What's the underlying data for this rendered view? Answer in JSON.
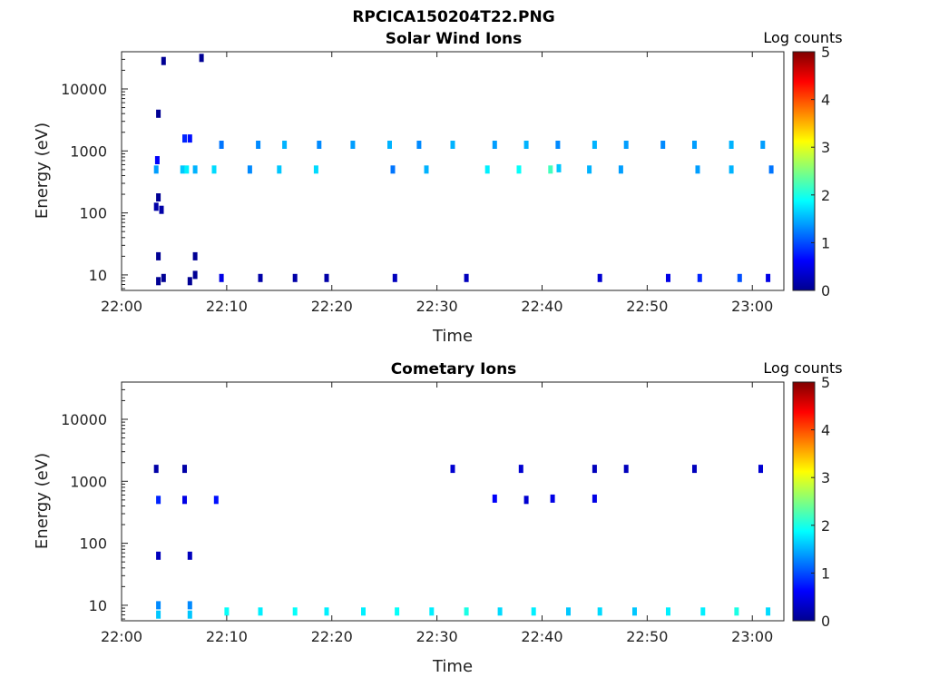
{
  "figure_title": "RPCICA150204T22.PNG",
  "chart_data": [
    {
      "type": "heatmap",
      "title": "Solar Wind Ions",
      "xlabel": "Time",
      "ylabel": "Energy (eV)",
      "xticks": [
        "22:00",
        "22:10",
        "22:20",
        "22:30",
        "22:40",
        "22:50",
        "23:00"
      ],
      "yticks": [
        "10",
        "100",
        "1000",
        "10000"
      ],
      "x_range_minutes": [
        0,
        63
      ],
      "y_range_log10_eV": [
        0.75,
        4.6
      ],
      "colorbar": {
        "label": "Log counts",
        "ticks": [
          "0",
          "1",
          "2",
          "3",
          "4",
          "5"
        ],
        "range": [
          0,
          5
        ],
        "colormap": "jet"
      },
      "cells": [
        {
          "t": 3.5,
          "e": 0.9,
          "v": 0.1
        },
        {
          "t": 4.0,
          "e": 0.95,
          "v": 0.1
        },
        {
          "t": 3.5,
          "e": 1.3,
          "v": 0.1
        },
        {
          "t": 6.5,
          "e": 0.9,
          "v": 0.1
        },
        {
          "t": 7.0,
          "e": 1.0,
          "v": 0.1
        },
        {
          "t": 7.0,
          "e": 1.3,
          "v": 0.1
        },
        {
          "t": 3.3,
          "e": 2.1,
          "v": 0.2
        },
        {
          "t": 3.8,
          "e": 2.05,
          "v": 0.2
        },
        {
          "t": 3.5,
          "e": 2.25,
          "v": 0.1
        },
        {
          "t": 3.3,
          "e": 2.7,
          "v": 1.4
        },
        {
          "t": 3.4,
          "e": 2.85,
          "v": 0.6
        },
        {
          "t": 5.8,
          "e": 2.7,
          "v": 1.6
        },
        {
          "t": 6.2,
          "e": 2.7,
          "v": 1.8
        },
        {
          "t": 7.0,
          "e": 2.7,
          "v": 1.5
        },
        {
          "t": 6.0,
          "e": 3.2,
          "v": 0.8
        },
        {
          "t": 6.5,
          "e": 3.2,
          "v": 0.7
        },
        {
          "t": 8.8,
          "e": 2.7,
          "v": 1.7
        },
        {
          "t": 9.5,
          "e": 3.1,
          "v": 1.2
        },
        {
          "t": 3.5,
          "e": 3.6,
          "v": 0.1
        },
        {
          "t": 4.0,
          "e": 4.45,
          "v": 0.1
        },
        {
          "t": 7.6,
          "e": 4.5,
          "v": 0.1
        },
        {
          "t": 13.0,
          "e": 3.1,
          "v": 1.3
        },
        {
          "t": 15.5,
          "e": 3.1,
          "v": 1.5
        },
        {
          "t": 18.8,
          "e": 3.1,
          "v": 1.3
        },
        {
          "t": 22.0,
          "e": 3.1,
          "v": 1.4
        },
        {
          "t": 25.5,
          "e": 3.1,
          "v": 1.5
        },
        {
          "t": 28.3,
          "e": 3.1,
          "v": 1.3
        },
        {
          "t": 31.5,
          "e": 3.1,
          "v": 1.5
        },
        {
          "t": 35.5,
          "e": 3.1,
          "v": 1.4
        },
        {
          "t": 38.5,
          "e": 3.1,
          "v": 1.5
        },
        {
          "t": 41.5,
          "e": 3.1,
          "v": 1.3
        },
        {
          "t": 45.0,
          "e": 3.1,
          "v": 1.5
        },
        {
          "t": 48.0,
          "e": 3.1,
          "v": 1.4
        },
        {
          "t": 51.5,
          "e": 3.1,
          "v": 1.3
        },
        {
          "t": 54.5,
          "e": 3.1,
          "v": 1.4
        },
        {
          "t": 58.0,
          "e": 3.1,
          "v": 1.5
        },
        {
          "t": 61.0,
          "e": 3.1,
          "v": 1.4
        },
        {
          "t": 12.2,
          "e": 2.7,
          "v": 1.3
        },
        {
          "t": 15.0,
          "e": 2.7,
          "v": 1.6
        },
        {
          "t": 18.5,
          "e": 2.7,
          "v": 1.7
        },
        {
          "t": 25.8,
          "e": 2.7,
          "v": 1.2
        },
        {
          "t": 29.0,
          "e": 2.7,
          "v": 1.5
        },
        {
          "t": 34.8,
          "e": 2.7,
          "v": 1.8
        },
        {
          "t": 37.8,
          "e": 2.7,
          "v": 1.9
        },
        {
          "t": 40.8,
          "e": 2.7,
          "v": 2.2
        },
        {
          "t": 41.6,
          "e": 2.72,
          "v": 1.6
        },
        {
          "t": 44.5,
          "e": 2.7,
          "v": 1.5
        },
        {
          "t": 47.5,
          "e": 2.7,
          "v": 1.4
        },
        {
          "t": 54.8,
          "e": 2.7,
          "v": 1.4
        },
        {
          "t": 58.0,
          "e": 2.7,
          "v": 1.5
        },
        {
          "t": 61.8,
          "e": 2.7,
          "v": 1.2
        },
        {
          "t": 9.5,
          "e": 0.95,
          "v": 0.5
        },
        {
          "t": 13.2,
          "e": 0.95,
          "v": 0.2
        },
        {
          "t": 16.5,
          "e": 0.95,
          "v": 0.2
        },
        {
          "t": 19.5,
          "e": 0.95,
          "v": 0.2
        },
        {
          "t": 26.0,
          "e": 0.95,
          "v": 0.3
        },
        {
          "t": 32.8,
          "e": 0.95,
          "v": 0.3
        },
        {
          "t": 45.5,
          "e": 0.95,
          "v": 0.4
        },
        {
          "t": 52.0,
          "e": 0.95,
          "v": 0.5
        },
        {
          "t": 55.0,
          "e": 0.95,
          "v": 0.8
        },
        {
          "t": 58.8,
          "e": 0.95,
          "v": 1.0
        },
        {
          "t": 61.5,
          "e": 0.95,
          "v": 0.5
        }
      ]
    },
    {
      "type": "heatmap",
      "title": "Cometary Ions",
      "xlabel": "Time",
      "ylabel": "Energy (eV)",
      "xticks": [
        "22:00",
        "22:10",
        "22:20",
        "22:30",
        "22:40",
        "22:50",
        "23:00"
      ],
      "yticks": [
        "10",
        "100",
        "1000",
        "10000"
      ],
      "x_range_minutes": [
        0,
        63
      ],
      "y_range_log10_eV": [
        0.75,
        4.6
      ],
      "colorbar": {
        "label": "Log counts",
        "ticks": [
          "0",
          "1",
          "2",
          "3",
          "4",
          "5"
        ],
        "range": [
          0,
          5
        ],
        "colormap": "jet"
      },
      "cells": [
        {
          "t": 3.5,
          "e": 1.0,
          "v": 1.3
        },
        {
          "t": 3.5,
          "e": 0.85,
          "v": 1.6
        },
        {
          "t": 6.5,
          "e": 1.0,
          "v": 1.3
        },
        {
          "t": 6.5,
          "e": 0.85,
          "v": 1.6
        },
        {
          "t": 10.0,
          "e": 0.9,
          "v": 1.9
        },
        {
          "t": 13.2,
          "e": 0.9,
          "v": 1.8
        },
        {
          "t": 16.5,
          "e": 0.9,
          "v": 1.9
        },
        {
          "t": 19.5,
          "e": 0.9,
          "v": 1.8
        },
        {
          "t": 23.0,
          "e": 0.9,
          "v": 1.8
        },
        {
          "t": 26.2,
          "e": 0.9,
          "v": 1.9
        },
        {
          "t": 29.5,
          "e": 0.9,
          "v": 1.8
        },
        {
          "t": 32.8,
          "e": 0.9,
          "v": 2.0
        },
        {
          "t": 36.0,
          "e": 0.9,
          "v": 1.7
        },
        {
          "t": 39.2,
          "e": 0.9,
          "v": 1.8
        },
        {
          "t": 42.5,
          "e": 0.9,
          "v": 1.6
        },
        {
          "t": 45.5,
          "e": 0.9,
          "v": 1.7
        },
        {
          "t": 48.8,
          "e": 0.9,
          "v": 1.6
        },
        {
          "t": 52.0,
          "e": 0.9,
          "v": 1.8
        },
        {
          "t": 55.3,
          "e": 0.9,
          "v": 1.8
        },
        {
          "t": 58.5,
          "e": 0.9,
          "v": 2.0
        },
        {
          "t": 61.5,
          "e": 0.9,
          "v": 1.7
        },
        {
          "t": 3.5,
          "e": 1.8,
          "v": 0.3
        },
        {
          "t": 6.5,
          "e": 1.8,
          "v": 0.3
        },
        {
          "t": 3.5,
          "e": 2.7,
          "v": 0.8
        },
        {
          "t": 3.3,
          "e": 3.2,
          "v": 0.2
        },
        {
          "t": 6.0,
          "e": 3.2,
          "v": 0.2
        },
        {
          "t": 6.0,
          "e": 2.7,
          "v": 0.5
        },
        {
          "t": 9.0,
          "e": 2.7,
          "v": 0.7
        },
        {
          "t": 35.5,
          "e": 2.72,
          "v": 0.6
        },
        {
          "t": 41.0,
          "e": 2.72,
          "v": 0.5
        },
        {
          "t": 38.5,
          "e": 2.7,
          "v": 0.4
        },
        {
          "t": 45.0,
          "e": 2.72,
          "v": 0.5
        },
        {
          "t": 31.5,
          "e": 3.2,
          "v": 0.4
        },
        {
          "t": 38.0,
          "e": 3.2,
          "v": 0.4
        },
        {
          "t": 45.0,
          "e": 3.2,
          "v": 0.3
        },
        {
          "t": 48.0,
          "e": 3.2,
          "v": 0.3
        },
        {
          "t": 54.5,
          "e": 3.2,
          "v": 0.3
        },
        {
          "t": 60.8,
          "e": 3.2,
          "v": 0.4
        }
      ]
    }
  ]
}
